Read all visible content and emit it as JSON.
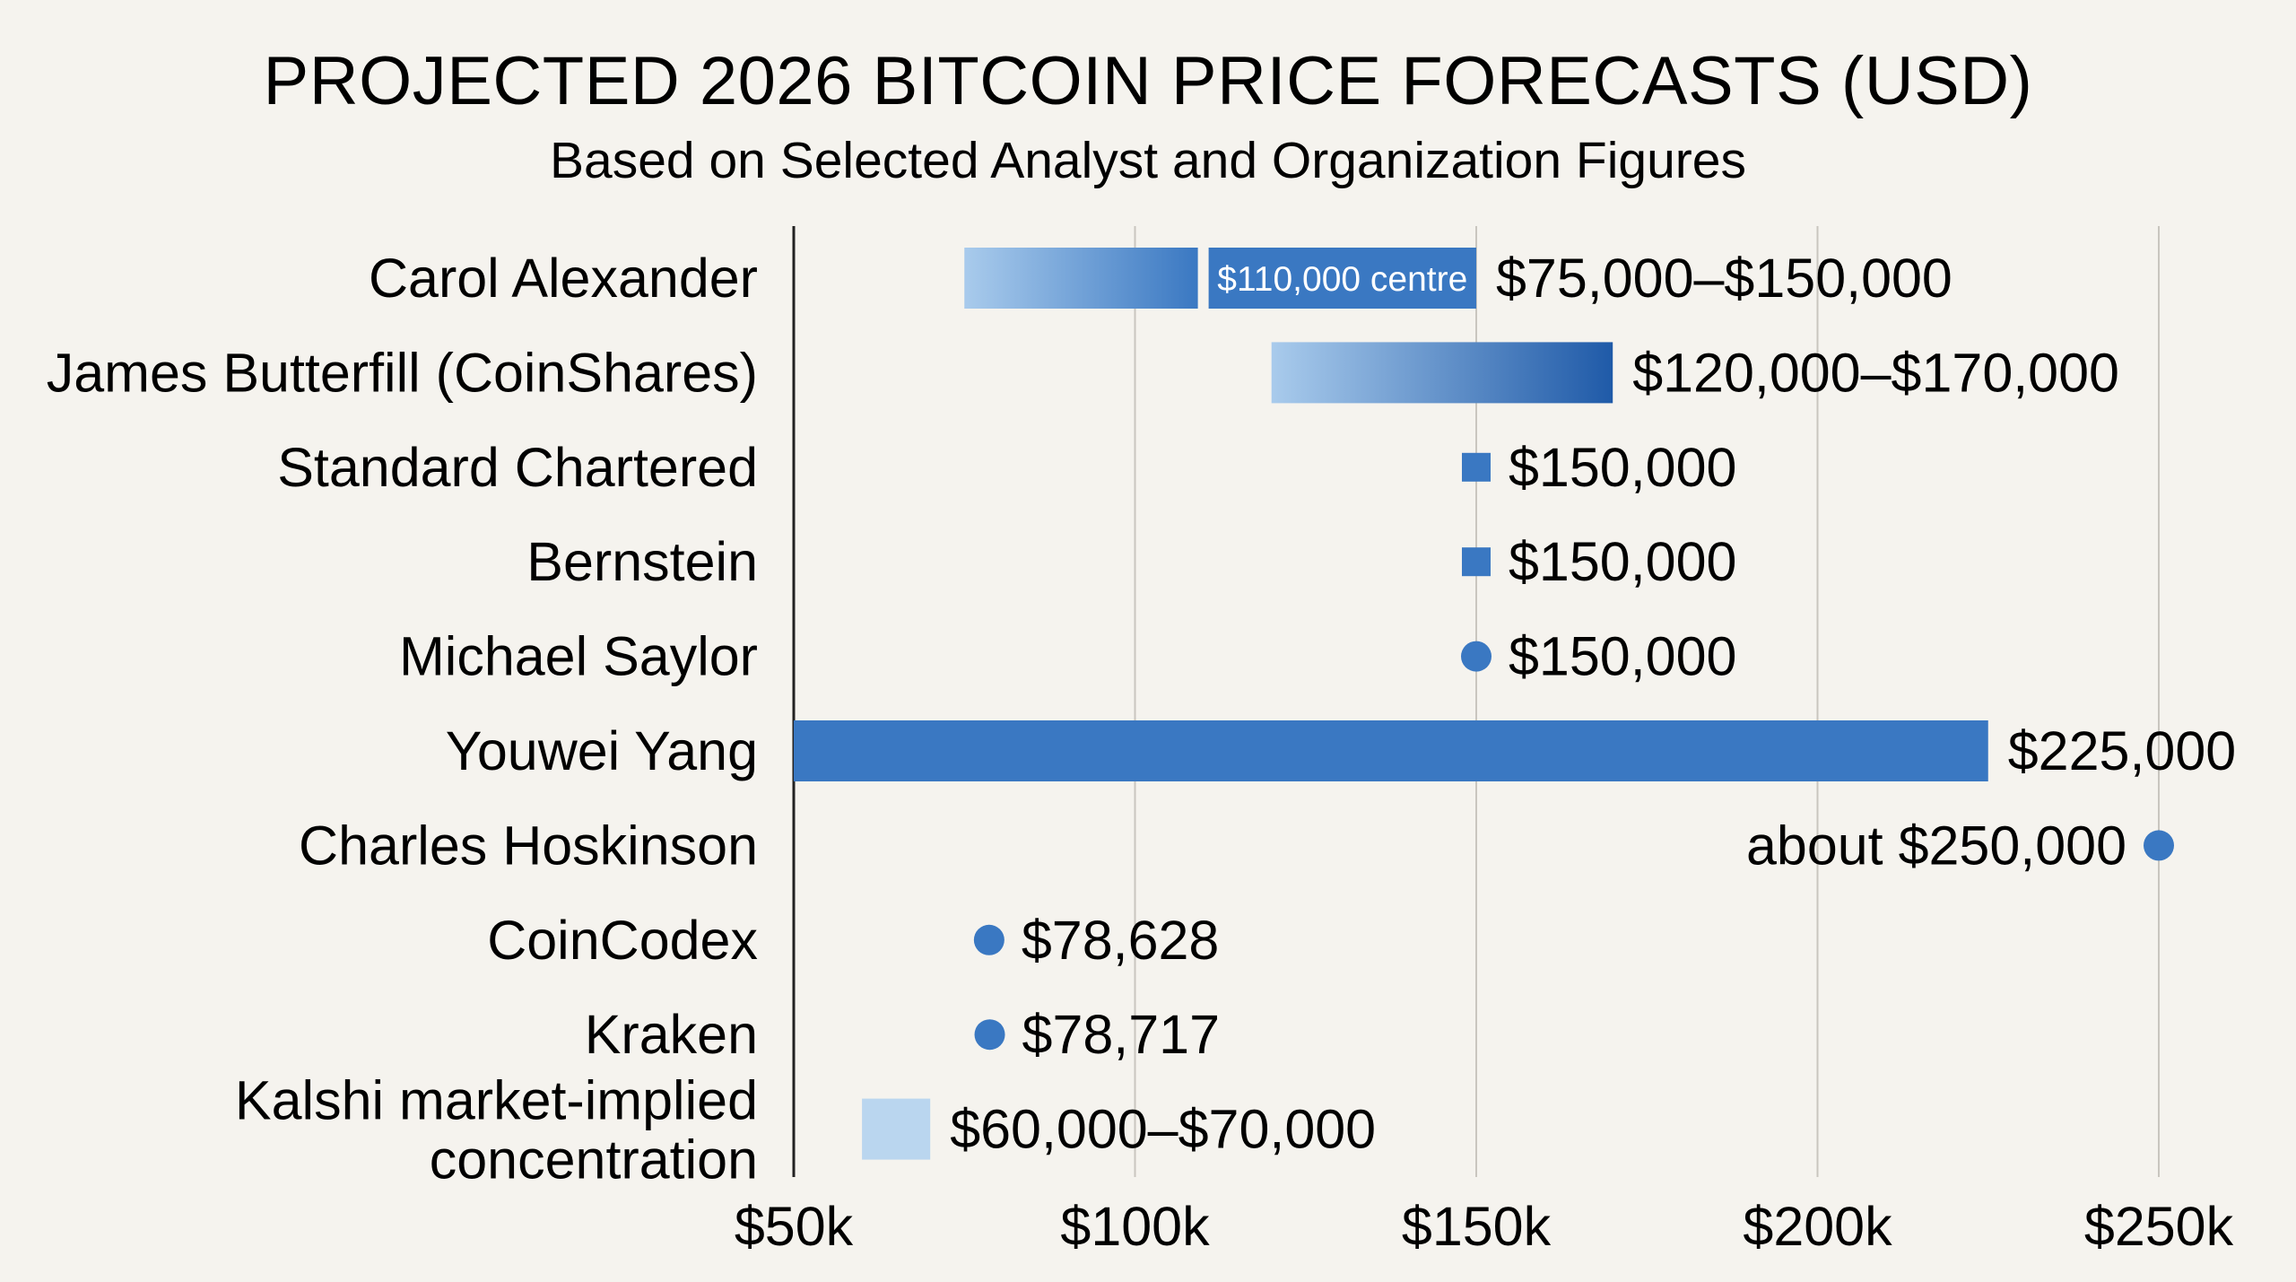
{
  "chart_data": {
    "type": "bar",
    "title": "PROJECTED 2026 BITCOIN PRICE FORECASTS (USD)",
    "subtitle": "Based on Selected Analyst and Organization Figures",
    "xlim": [
      50000,
      250000
    ],
    "x_ticks": [
      {
        "value": 50000,
        "label": "$50k"
      },
      {
        "value": 100000,
        "label": "$100k"
      },
      {
        "value": 150000,
        "label": "$150k"
      },
      {
        "value": 200000,
        "label": "$200k"
      },
      {
        "value": 250000,
        "label": "$250k"
      }
    ],
    "grid": true,
    "colors": {
      "primary": "#3a78c2",
      "gradient_start": "#a9cbec",
      "gradient_end": "#1f5aa8",
      "light": "#bad6ef",
      "axis": "#222222",
      "grid": "#c9c6bf"
    },
    "rows": [
      {
        "label": [
          "Carol Alexander"
        ],
        "kind": "range-split",
        "low": 75000,
        "high": 150000,
        "centre": 110000,
        "inner_label": "$110,000 centre",
        "value_label": "$75,000–$150,000"
      },
      {
        "label": [
          "James Butterfill (CoinShares)"
        ],
        "kind": "range",
        "low": 120000,
        "high": 170000,
        "value_label": "$120,000–$170,000"
      },
      {
        "label": [
          "Standard Chartered"
        ],
        "kind": "square",
        "value": 150000,
        "value_label": "$150,000"
      },
      {
        "label": [
          "Bernstein"
        ],
        "kind": "square",
        "value": 150000,
        "value_label": "$150,000"
      },
      {
        "label": [
          "Michael Saylor"
        ],
        "kind": "dot",
        "value": 150000,
        "value_label": "$150,000"
      },
      {
        "label": [
          "Youwei Yang"
        ],
        "kind": "bar",
        "value": 225000,
        "value_label": "$225,000"
      },
      {
        "label": [
          "Charles Hoskinson"
        ],
        "kind": "dot-left",
        "value": 250000,
        "value_label": "about $250,000"
      },
      {
        "label": [
          "CoinCodex"
        ],
        "kind": "dot",
        "value": 78628,
        "value_label": "$78,628"
      },
      {
        "label": [
          "Kraken"
        ],
        "kind": "dot",
        "value": 78717,
        "value_label": "$78,717"
      },
      {
        "label": [
          "Kalshi market-implied",
          "concentration"
        ],
        "kind": "range-light",
        "low": 60000,
        "high": 70000,
        "value_label": "$60,000–$70,000"
      }
    ]
  }
}
